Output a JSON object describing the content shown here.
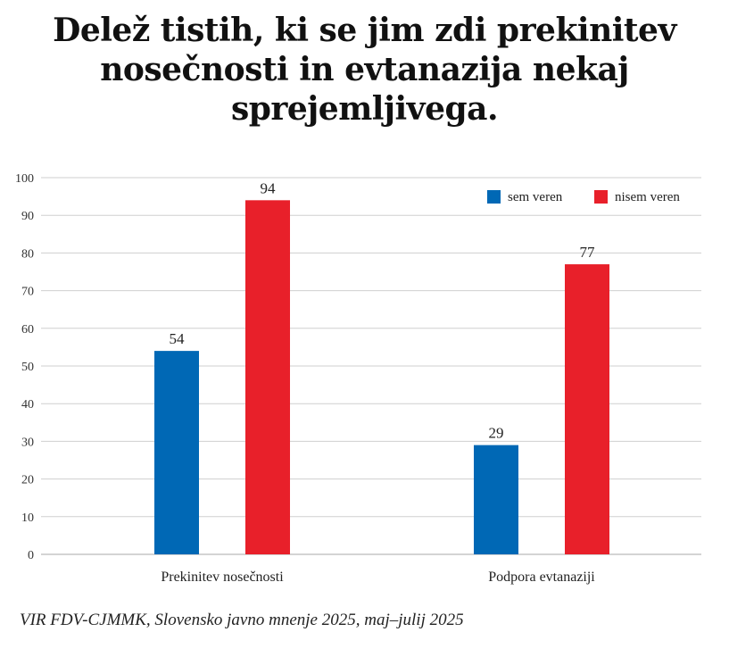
{
  "title": "Delež tistih, ki se jim zdi prekinitev nosečnosti in evtanazija nekaj sprejemljivega.",
  "source": "VIR FDV-CJMMK, Slovensko javno mnenje 2025, maj–julij 2025",
  "chart_data": {
    "type": "bar",
    "title": "Delež tistih, ki se jim zdi prekinitev nosečnosti in evtanazija nekaj sprejemljivega.",
    "categories": [
      "Prekinitev nosečnosti",
      "Podpora evtanaziji"
    ],
    "series": [
      {
        "name": "sem veren",
        "values": [
          54,
          29
        ],
        "color": "#0068b5"
      },
      {
        "name": "nisem veren",
        "values": [
          94,
          77
        ],
        "color": "#e8202a"
      }
    ],
    "ylim": [
      0,
      100
    ],
    "yticks": [
      0,
      10,
      20,
      30,
      40,
      50,
      60,
      70,
      80,
      90,
      100
    ],
    "grid": true,
    "legend": "top-right",
    "data_labels": true
  }
}
